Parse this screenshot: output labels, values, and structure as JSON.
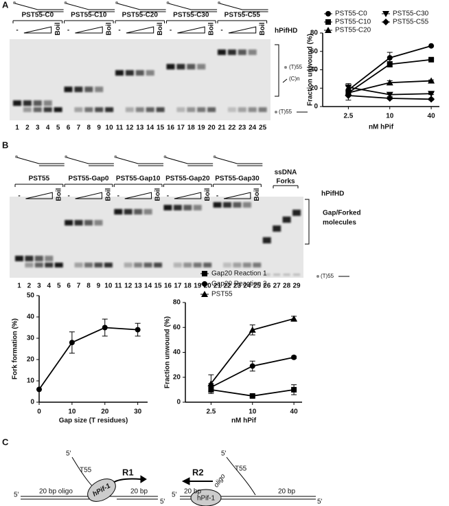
{
  "panels": {
    "a": {
      "label": "A",
      "constructs": [
        "PST55-C0",
        "PST55-C10",
        "PST55-C20",
        "PST55-C30",
        "PST55-C55"
      ],
      "minus": "-",
      "boil": "Boil",
      "enzyme": "hPifHD",
      "duplex_label": "(T)55",
      "overhang_label": "(C)n",
      "ss_label": "(T)55",
      "lanes": [
        1,
        2,
        3,
        4,
        5,
        6,
        7,
        8,
        9,
        10,
        11,
        12,
        13,
        14,
        15,
        16,
        17,
        18,
        19,
        20,
        21,
        22,
        23,
        24,
        25
      ]
    },
    "b": {
      "label": "B",
      "constructs": [
        "PST55",
        "PST55-Gap0",
        "PST55-Gap10",
        "PST55-Gap20",
        "PST55-Gap30"
      ],
      "forks": [
        "ssDNA",
        "Forks"
      ],
      "minus": "-",
      "boil": "Boil",
      "enzyme": "hPifHD",
      "molecules": [
        "Gap/Forked",
        "molecules"
      ],
      "ss_label": "(T)55",
      "lanes": [
        1,
        2,
        3,
        4,
        5,
        6,
        7,
        8,
        9,
        10,
        11,
        12,
        13,
        14,
        15,
        16,
        17,
        18,
        19,
        20,
        21,
        22,
        23,
        24,
        25,
        26,
        27,
        28,
        29
      ]
    },
    "c": {
      "label": "C",
      "r1": {
        "five_top": "5'",
        "tail": "T55",
        "arrow": "R1",
        "oligo": "20 bp oligo",
        "protein": "hPif-1",
        "duplex": "20 bp",
        "five_left": "5'",
        "five_right": "5'"
      },
      "r2": {
        "five_top": "5'",
        "tail": "T55",
        "arrow": "R2",
        "duplex_left": "20 bp",
        "oligo": "oligo",
        "protein": "hPif-1",
        "duplex": "20 bp",
        "five_left": "5'",
        "five_right": "5'"
      }
    }
  },
  "chart_data": [
    {
      "type": "line",
      "y_label": "Fraction unwound (%)",
      "x_label": "nM hPif",
      "categories": [
        "2.5",
        "10",
        "40"
      ],
      "ylim": [
        0,
        80
      ],
      "yticks": [
        0,
        20,
        40,
        60,
        80
      ],
      "series": [
        {
          "name": "PST55-C0",
          "color": "#000000",
          "marker": "circle",
          "values": [
            18,
            53,
            66
          ],
          "errors": [
            4,
            6,
            0
          ]
        },
        {
          "name": "PST55-C10",
          "color": "#000000",
          "marker": "square",
          "values": [
            15,
            46,
            51
          ],
          "errors": [
            3,
            3,
            1
          ]
        },
        {
          "name": "PST55-C20",
          "color": "#000000",
          "marker": "triangle",
          "values": [
            15,
            26,
            28
          ],
          "errors": [
            3,
            2,
            1
          ]
        },
        {
          "name": "PST55-C30",
          "color": "#000000",
          "marker": "triangle-down",
          "values": [
            21,
            13,
            14
          ],
          "errors": [
            4,
            2,
            1
          ]
        },
        {
          "name": "PST55-C55",
          "color": "#000000",
          "marker": "diamond",
          "values": [
            12,
            9,
            8
          ],
          "errors": [
            5,
            1,
            1
          ]
        }
      ]
    },
    {
      "type": "line",
      "y_label": "Fork formation (%)",
      "x_label": "Gap size (T residues)",
      "x": [
        0,
        10,
        20,
        30
      ],
      "values": [
        6,
        28,
        35,
        34
      ],
      "errors": [
        0,
        5,
        4,
        3
      ],
      "color": "#000000",
      "marker": "circle",
      "xlim": [
        0,
        33
      ],
      "xticks": [
        0,
        10,
        20,
        30
      ],
      "ylim": [
        0,
        50
      ],
      "yticks": [
        0,
        10,
        20,
        30,
        40,
        50
      ]
    },
    {
      "type": "line",
      "y_label": "Fraction unwound (%)",
      "x_label": "nM hPif",
      "categories": [
        "2.5",
        "10",
        "40"
      ],
      "ylim": [
        0,
        80
      ],
      "yticks": [
        0,
        20,
        40,
        60,
        80
      ],
      "series": [
        {
          "name": "Gap20 Reaction 1",
          "color": "#000000",
          "marker": "square",
          "values": [
            10,
            5,
            10
          ],
          "errors": [
            3,
            1,
            4
          ]
        },
        {
          "name": "Gap20 Reaction 2",
          "color": "#000000",
          "marker": "circle",
          "values": [
            12,
            29,
            36
          ],
          "errors": [
            3,
            4,
            1
          ]
        },
        {
          "name": "PST55",
          "color": "#000000",
          "marker": "triangle",
          "values": [
            15,
            58,
            67
          ],
          "errors": [
            7,
            4,
            2
          ]
        }
      ]
    }
  ]
}
